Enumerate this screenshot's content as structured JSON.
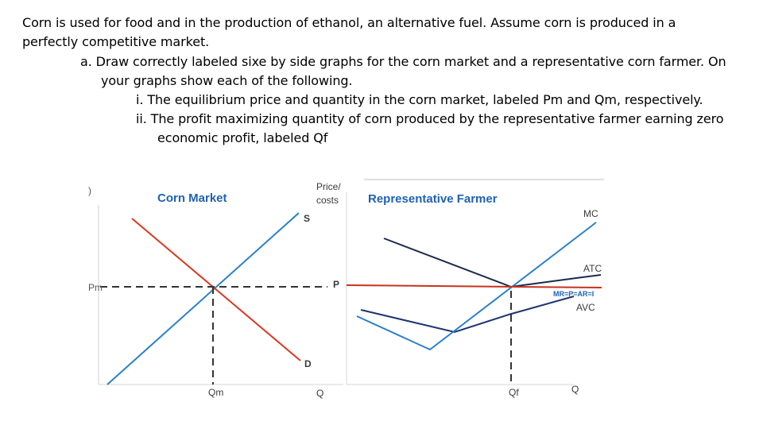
{
  "question": {
    "line1": "Corn is used for food and in the production of ethanol, an alternative fuel.  Assume corn is produced in a",
    "line2": "perfectly competitive market.",
    "part_a_line1": "a.  Draw correctly labeled sixe by side graphs for the corn market and a representative  corn farmer.  On",
    "part_a_line2": "your graphs show each of the following.",
    "item_i": "i.  The equilibrium price and quantity in the corn market, labeled Pm and Qm, respectively.",
    "item_ii_line1": "ii.  The profit maximizing quantity of corn produced by the representative farmer earning zero",
    "item_ii_line2": "economic profit, labeled Qf"
  },
  "market_graph": {
    "title": "Corn Market",
    "y_axis_label_fragment": ")",
    "price_label": "Pm",
    "supply_label": "S",
    "demand_label": "D",
    "quantity_label": "Qm",
    "x_axis_label": "Q"
  },
  "farmer_graph": {
    "title": "Representative Farmer",
    "y_axis_label_line1": "Price/",
    "y_axis_label_line2": "costs",
    "price_label": "P",
    "mc_label": "MC",
    "atc_label": "ATC",
    "mr_label": "MR=P=AR=I",
    "avc_label": "AVC",
    "quantity_label": "Qf",
    "x_axis_label": "Q"
  },
  "colors": {
    "title_blue": "#1f62b4",
    "demand_red": "#d9381e",
    "supply_blue": "#2b7fca",
    "mr_red": "#c8321e",
    "atc_navy": "#1c2a4e",
    "avc_navy": "#1c3470",
    "axis_gray": "#555555",
    "label_gray": "#3a3a3a"
  }
}
